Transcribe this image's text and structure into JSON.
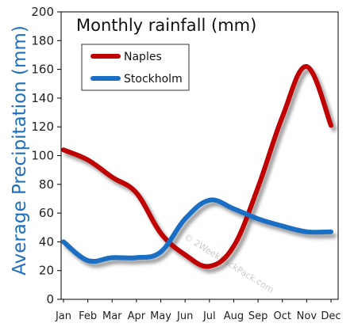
{
  "chart_data": {
    "type": "line",
    "title": "Monthly rainfall (mm)",
    "ylabel": "Average Precipitation (mm)",
    "xlabel": "",
    "categories": [
      "Jan",
      "Feb",
      "Mar",
      "Apr",
      "May",
      "Jun",
      "Jul",
      "Aug",
      "Sep",
      "Oct",
      "Nov",
      "Dec"
    ],
    "ylim": [
      0,
      200
    ],
    "yticks": [
      "0",
      "20",
      "40",
      "60",
      "80",
      "100",
      "120",
      "140",
      "160",
      "180",
      "200"
    ],
    "grid": false,
    "legend": "top-left",
    "series": [
      {
        "name": "Naples",
        "color": "#c00000",
        "values": [
          104,
          97,
          85,
          74,
          46,
          31,
          23,
          37,
          78,
          127,
          162,
          121
        ]
      },
      {
        "name": "Stockholm",
        "color": "#1a6fc4",
        "values": [
          40,
          27,
          29,
          29,
          33,
          56,
          69,
          63,
          56,
          51,
          47,
          47
        ]
      }
    ],
    "watermark": "© 2WeekBackPack.com"
  },
  "colors": {
    "ylabel": "#1f6fbf",
    "axis": "#000000",
    "shadow": "#7a7a7a"
  }
}
